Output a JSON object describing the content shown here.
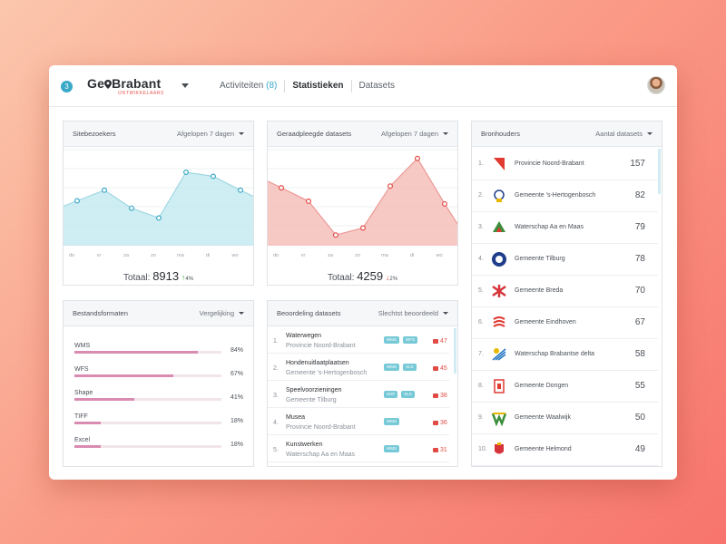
{
  "header": {
    "notification_count": "3",
    "logo_text_a": "Ge",
    "logo_text_b": "Brabant",
    "logo_subtitle": "ONTWIKKELAARS",
    "nav": [
      {
        "label": "Activiteiten",
        "count": "(8)"
      },
      {
        "label": "Statistieken"
      },
      {
        "label": "Datasets"
      }
    ],
    "active_tab": "Statistieken"
  },
  "visitors": {
    "title": "Sitebezoekers",
    "filter": "Afgelopen 7 dagen",
    "total_label": "Totaal:",
    "total": "8913",
    "change": "4%",
    "direction": "up",
    "color": "#bfe8ef",
    "stroke": "#9fd7e2",
    "chart_data": {
      "type": "area",
      "categories": [
        "do",
        "vr",
        "za",
        "zo",
        "ma",
        "di",
        "wo"
      ],
      "values": [
        55,
        68,
        46,
        34,
        90,
        85,
        68
      ],
      "ylim": [
        0,
        120
      ]
    }
  },
  "datasets_used": {
    "title": "Geraadpleegde datasets",
    "filter": "Afgelopen 7 dagen",
    "total_label": "Totaal:",
    "total": "4259",
    "change": "2%",
    "direction": "down",
    "color": "#f4b7b2",
    "stroke": "#eb9a95",
    "chart_data": {
      "type": "area",
      "categories": [
        "do",
        "vr",
        "za",
        "zo",
        "ma",
        "di",
        "wo"
      ],
      "values": [
        65,
        50,
        12,
        20,
        67,
        98,
        47
      ],
      "ylim": [
        0,
        110
      ]
    }
  },
  "formats": {
    "title": "Bestandsformaten",
    "filter": "Vergelijking",
    "items": [
      {
        "label": "WMS",
        "pct": "84%",
        "value": 0.84
      },
      {
        "label": "WFS",
        "pct": "67%",
        "value": 0.67
      },
      {
        "label": "Shape",
        "pct": "41%",
        "value": 0.41
      },
      {
        "label": "TIFF",
        "pct": "18%",
        "value": 0.18
      },
      {
        "label": "Excel",
        "pct": "18%",
        "value": 0.18
      }
    ]
  },
  "ratings": {
    "title": "Beoordeling datasets",
    "filter": "Slechtst beoordeeld",
    "items": [
      {
        "num": "1.",
        "name": "Waterwegen",
        "owner": "Provincie Noord-Brabant",
        "tags": [
          "WMS",
          "WFS"
        ],
        "score": "47"
      },
      {
        "num": "2.",
        "name": "Hondenuitlaatplaatsen",
        "owner": "Gemeente 's-Hertogenbosch",
        "tags": [
          "WMS",
          "XLS"
        ],
        "score": "45"
      },
      {
        "num": "3.",
        "name": "Speelvoorzieningen",
        "owner": "Gemeente Tilburg",
        "tags": [
          "SHP",
          "XLS"
        ],
        "score": "38"
      },
      {
        "num": "4.",
        "name": "Musea",
        "owner": "Provincie Noord-Brabant",
        "tags": [
          "WMS"
        ],
        "score": "36"
      },
      {
        "num": "5.",
        "name": "Kunstwerken",
        "owner": "Waterschap Aa en Maas",
        "tags": [
          "WMS"
        ],
        "score": "31"
      }
    ]
  },
  "owners": {
    "title": "Bronhouders",
    "filter": "Aantal datasets",
    "items": [
      {
        "num": "1.",
        "name": "Provincie Noord-Brabant",
        "value": "157",
        "icon": "provincie-logo-icon"
      },
      {
        "num": "2.",
        "name": "Gemeente 's-Hertogenbosch",
        "value": "82",
        "icon": "den-bosch-logo-icon"
      },
      {
        "num": "3.",
        "name": "Waterschap Aa en Maas",
        "value": "79",
        "icon": "aa-en-maas-logo-icon"
      },
      {
        "num": "4.",
        "name": "Gemeente Tilburg",
        "value": "78",
        "icon": "tilburg-logo-icon"
      },
      {
        "num": "5.",
        "name": "Gemeente Breda",
        "value": "70",
        "icon": "breda-logo-icon"
      },
      {
        "num": "6.",
        "name": "Gemeente Eindhoven",
        "value": "67",
        "icon": "eindhoven-logo-icon"
      },
      {
        "num": "7.",
        "name": "Waterschap Brabantse delta",
        "value": "58",
        "icon": "brabantse-delta-logo-icon"
      },
      {
        "num": "8.",
        "name": "Gemeente Dongen",
        "value": "55",
        "icon": "dongen-logo-icon"
      },
      {
        "num": "9.",
        "name": "Gemeente Waalwijk",
        "value": "50",
        "icon": "waalwijk-logo-icon"
      },
      {
        "num": "10.",
        "name": "Gemeente Helmond",
        "value": "49",
        "icon": "helmond-logo-icon"
      }
    ]
  }
}
